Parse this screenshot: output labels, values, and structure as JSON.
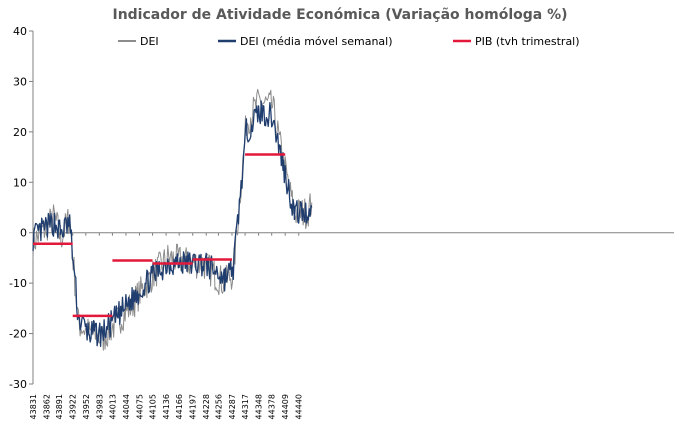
{
  "colors": {
    "dei": "#8c8c8c",
    "dei_ma": "#1f3d6e",
    "pib": "#e3193b",
    "axis": "#808080",
    "title": "#595959"
  },
  "chart_data": {
    "type": "line",
    "title": "Indicador de Atividade Económica (Variação homóloga %)",
    "xlabel": "",
    "ylabel": "",
    "ylim": [
      -30,
      40
    ],
    "yticks": [
      -30,
      -20,
      -10,
      0,
      10,
      20,
      30,
      40
    ],
    "xlim": [
      43831,
      45300
    ],
    "xticks": [
      "43831",
      "43862",
      "43891",
      "43922",
      "43952",
      "43983",
      "44013",
      "44044",
      "44075",
      "44105",
      "44136",
      "44166",
      "44197",
      "44228",
      "44256",
      "44287",
      "44317",
      "44348",
      "44378",
      "44409",
      "44440"
    ],
    "grid": false,
    "legend_position": "top",
    "series": [
      {
        "name": "DEI",
        "style": "line-light",
        "x": [
          43831,
          43860,
          43880,
          43895,
          43915,
          43935,
          43960,
          43990,
          44020,
          44060,
          44100,
          44140,
          44190,
          44220,
          44255,
          44270,
          44290,
          44320,
          44350,
          44380,
          44405,
          44430,
          44460,
          44470
        ],
        "y": [
          -2,
          1,
          3,
          -1,
          3,
          -18,
          -20,
          -21,
          -18,
          -14,
          -9,
          -5,
          -6,
          -6,
          -9,
          -10,
          -8,
          22,
          26,
          25,
          14,
          4,
          4,
          6
        ]
      },
      {
        "name": "DEI (média móvel semanal)",
        "style": "line-dark",
        "x": [
          43831,
          43860,
          43880,
          43895,
          43915,
          43935,
          43960,
          43990,
          44020,
          44060,
          44100,
          44140,
          44190,
          44220,
          44255,
          44270,
          44290,
          44320,
          44350,
          44380,
          44405,
          44430,
          44460,
          44470
        ],
        "y": [
          -1,
          1,
          2,
          0,
          2,
          -17,
          -20,
          -20,
          -17,
          -13,
          -9,
          -6,
          -6,
          -6,
          -8,
          -9,
          -7,
          20,
          24,
          23,
          13,
          4,
          4,
          5
        ]
      },
      {
        "name": "PIB (tvh trimestral)",
        "style": "step",
        "segments": [
          {
            "x0": 43831,
            "x1": 43922,
            "y": -2.2
          },
          {
            "x0": 43922,
            "x1": 44013,
            "y": -16.5
          },
          {
            "x0": 44013,
            "x1": 44105,
            "y": -5.5
          },
          {
            "x0": 44105,
            "x1": 44197,
            "y": -6.1
          },
          {
            "x0": 44197,
            "x1": 44287,
            "y": -5.3
          },
          {
            "x0": 44317,
            "x1": 44409,
            "y": 15.5
          }
        ]
      }
    ]
  }
}
